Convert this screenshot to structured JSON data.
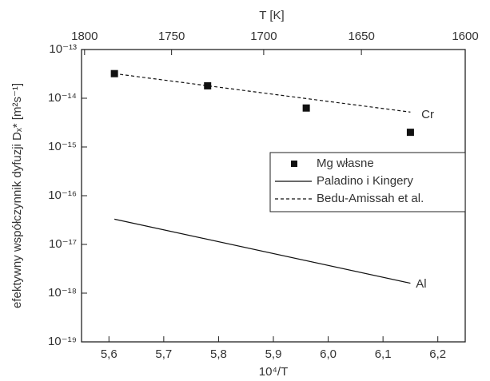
{
  "chart_data": {
    "type": "scatter",
    "x_label": "10⁴/T",
    "y_label": "efektywny współczynnik dyfuzji Dₓ* [m²s⁻¹]",
    "x2_label": "T [K]",
    "xlim": [
      5.55,
      6.25
    ],
    "xticks": [
      {
        "value": 5.6,
        "label": "5,6"
      },
      {
        "value": 5.7,
        "label": "5,7"
      },
      {
        "value": 5.8,
        "label": "5,8"
      },
      {
        "value": 5.9,
        "label": "5,9"
      },
      {
        "value": 6.0,
        "label": "6,0"
      },
      {
        "value": 6.1,
        "label": "6,1"
      },
      {
        "value": 6.2,
        "label": "6,2"
      }
    ],
    "x2lim": [
      1801.8,
      1600
    ],
    "x2scale": "reciprocal",
    "x2ticks": [
      1800,
      1750,
      1700,
      1650,
      1600
    ],
    "ylim": [
      1e-19,
      1e-13
    ],
    "yscale": "log",
    "yticks": [
      {
        "value": 1e-19,
        "label": "10⁻¹⁹"
      },
      {
        "value": 1e-18,
        "label": "10⁻¹⁸"
      },
      {
        "value": 1e-17,
        "label": "10⁻¹⁷"
      },
      {
        "value": 1e-16,
        "label": "10⁻¹⁶"
      },
      {
        "value": 1e-15,
        "label": "10⁻¹⁵"
      },
      {
        "value": 1e-14,
        "label": "10⁻¹⁴"
      },
      {
        "value": 1e-13,
        "label": "10⁻¹³"
      }
    ],
    "legend": "right",
    "series": [
      {
        "name": "Mg własne",
        "kind": "scatter",
        "color": "#111111",
        "x": [
          5.61,
          5.78,
          5.96,
          6.15
        ],
        "values": [
          3.2e-14,
          1.8e-14,
          6.3e-15,
          2e-15
        ]
      },
      {
        "name": "Paladino i Kingery",
        "kind": "line",
        "dash": false,
        "color": "#111111",
        "x": [
          5.61,
          6.15
        ],
        "values": [
          3.3e-17,
          1.6e-18
        ]
      },
      {
        "name": "Bedu-Amissah et al.",
        "kind": "line",
        "dash": true,
        "color": "#111111",
        "x": [
          5.61,
          6.15
        ],
        "values": [
          3.2e-14,
          5.2e-15
        ]
      }
    ],
    "annotations": [
      {
        "text": "Cr",
        "x": 6.17,
        "y": 4.5e-15
      },
      {
        "text": "Al",
        "x": 6.16,
        "y": 1.5e-18
      }
    ]
  }
}
